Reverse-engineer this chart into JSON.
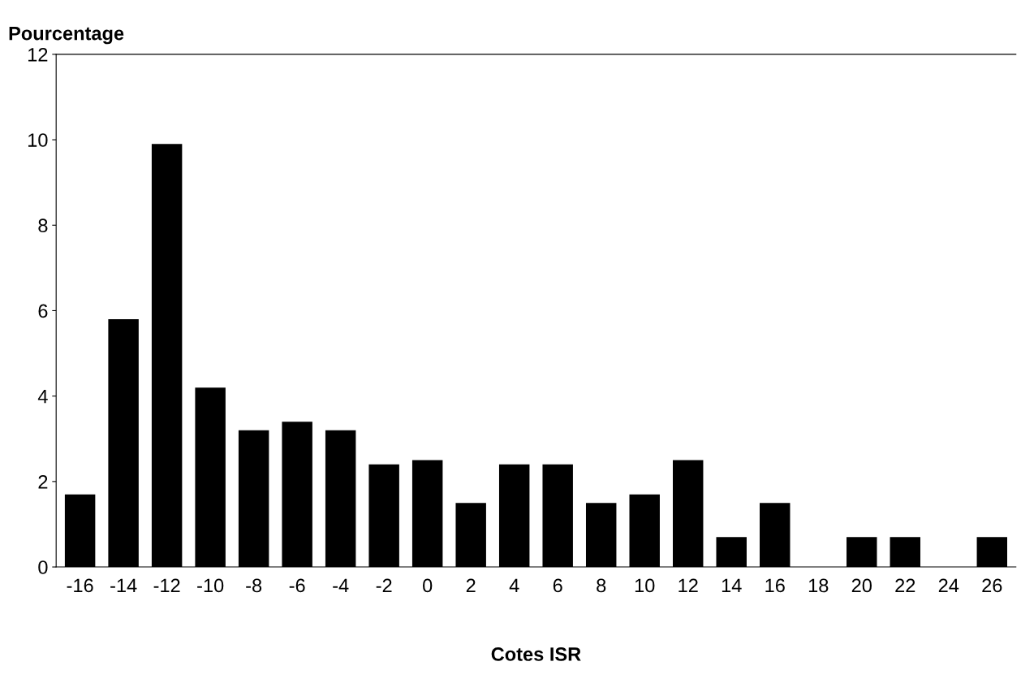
{
  "chart_data": {
    "type": "bar",
    "ylabel": "Pourcentage",
    "xlabel": "Cotes ISR",
    "categories": [
      "-16",
      "-14",
      "-12",
      "-10",
      "-8",
      "-6",
      "-4",
      "-2",
      "0",
      "2",
      "4",
      "6",
      "8",
      "10",
      "12",
      "14",
      "16",
      "18",
      "20",
      "22",
      "24",
      "26"
    ],
    "values": [
      1.7,
      5.8,
      9.9,
      4.2,
      3.2,
      3.4,
      3.2,
      2.4,
      2.5,
      1.5,
      2.4,
      2.4,
      1.5,
      1.7,
      2.5,
      0.7,
      1.5,
      0,
      0.7,
      0.7,
      0,
      0.7
    ],
    "color": "#000000",
    "ylim": [
      0,
      12
    ],
    "yticks": [
      0,
      2,
      4,
      6,
      8,
      10,
      12
    ],
    "grid": false
  }
}
